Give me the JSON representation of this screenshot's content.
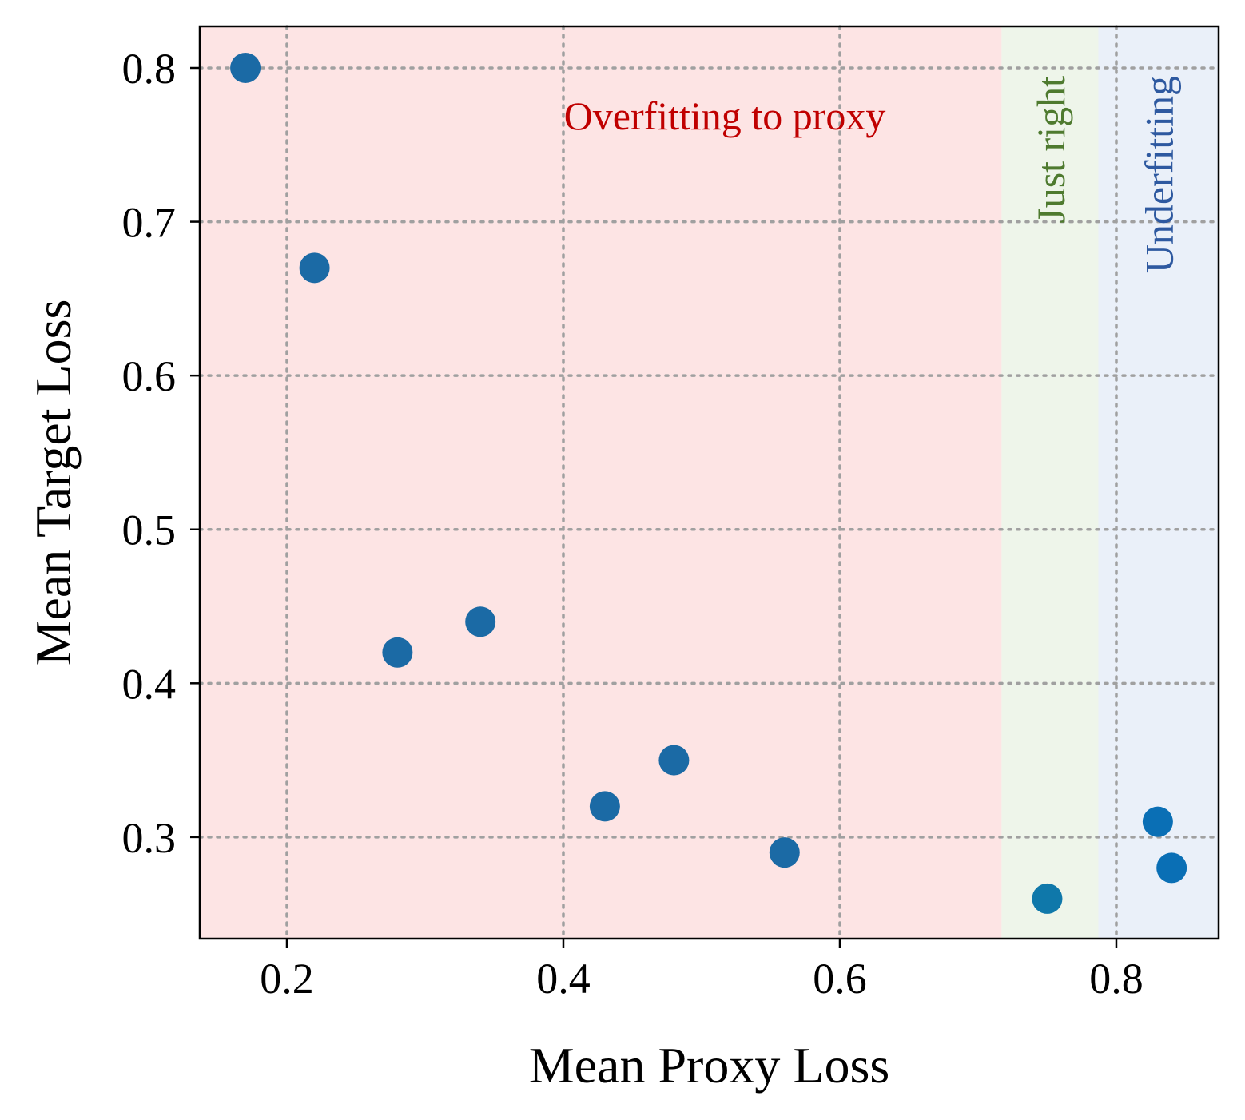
{
  "chart_data": {
    "type": "scatter",
    "title": "",
    "xlabel": "Mean Proxy Loss",
    "ylabel": "Mean Target Loss",
    "xlim": [
      0.137,
      0.874
    ],
    "ylim": [
      0.234,
      0.827
    ],
    "xticks": [
      0.2,
      0.4,
      0.6,
      0.8
    ],
    "yticks": [
      0.3,
      0.4,
      0.5,
      0.6,
      0.7,
      0.8
    ],
    "xtick_labels": [
      "0.2",
      "0.4",
      "0.6",
      "0.8"
    ],
    "ytick_labels": [
      "0.3",
      "0.4",
      "0.5",
      "0.6",
      "0.7",
      "0.8"
    ],
    "grid": true,
    "grid_style": "dotted",
    "regions": [
      {
        "name": "overfitting",
        "label": "Overfitting to proxy",
        "x_from": 0.137,
        "x_to": 0.717,
        "fill": "#fde4e4",
        "text_color": "#c00000",
        "orientation": "horizontal"
      },
      {
        "name": "just-right",
        "label": "Just right",
        "x_from": 0.717,
        "x_to": 0.787,
        "fill": "#eef5ea",
        "text_color": "#4e7a2f",
        "orientation": "vertical"
      },
      {
        "name": "underfitting",
        "label": "Underfitting",
        "x_from": 0.787,
        "x_to": 0.874,
        "fill": "#eaf0f9",
        "text_color": "#2e59a0",
        "orientation": "vertical"
      }
    ],
    "points": [
      {
        "x": 0.17,
        "y": 0.8,
        "color": "#1b6aa5"
      },
      {
        "x": 0.22,
        "y": 0.67,
        "color": "#1b6aa5"
      },
      {
        "x": 0.28,
        "y": 0.42,
        "color": "#1b6aa5"
      },
      {
        "x": 0.34,
        "y": 0.44,
        "color": "#1b6aa5"
      },
      {
        "x": 0.43,
        "y": 0.32,
        "color": "#1b6aa5"
      },
      {
        "x": 0.48,
        "y": 0.35,
        "color": "#1b6aa5"
      },
      {
        "x": 0.56,
        "y": 0.29,
        "color": "#1b6aa5"
      },
      {
        "x": 0.75,
        "y": 0.26,
        "color": "#0f78aa"
      },
      {
        "x": 0.83,
        "y": 0.31,
        "color": "#0a6fb5"
      },
      {
        "x": 0.84,
        "y": 0.28,
        "color": "#0a6fb5"
      }
    ]
  }
}
